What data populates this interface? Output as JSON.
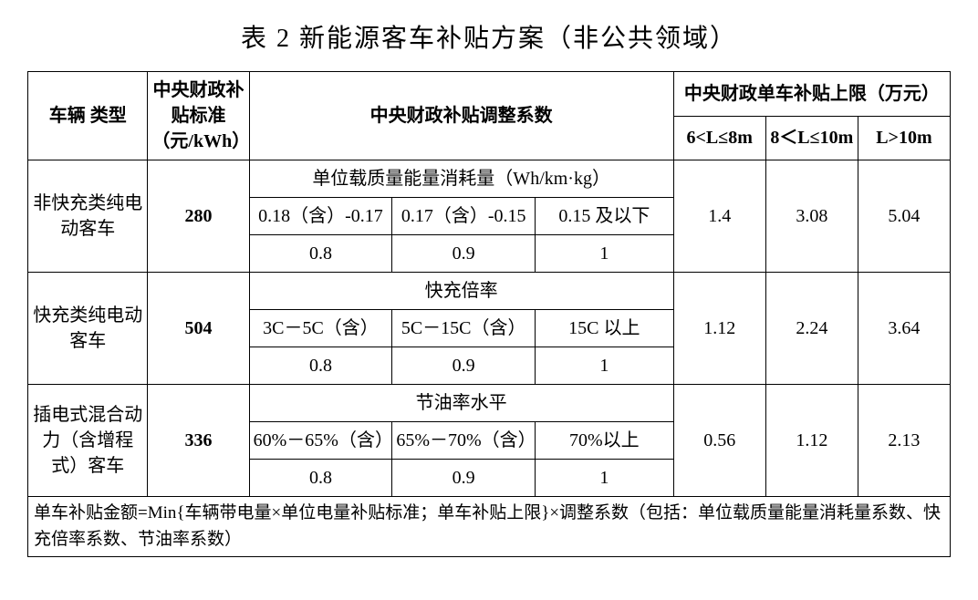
{
  "title": "表 2 新能源客车补贴方案（非公共领域）",
  "header": {
    "col1": "车辆\n类型",
    "col2": "中央财政补贴标准（元/kWh）",
    "col3": "中央财政补贴调整系数",
    "col4_group": "中央财政单车补贴上限（万元）",
    "sub_6_8": "6<L≤8m",
    "sub_8_10": "8＜L≤10m",
    "sub_gt10": "L>10m"
  },
  "rows": [
    {
      "type": "非快充类纯电动客车",
      "standard": "280",
      "sub_header": "单位载质量能量消耗量（Wh/km·kg）",
      "c1": "0.18（含）-0.17",
      "c2": "0.17（含）-0.15",
      "c3": "0.15 及以下",
      "f1": "0.8",
      "f2": "0.9",
      "f3": "1",
      "cap1": "1.4",
      "cap2": "3.08",
      "cap3": "5.04"
    },
    {
      "type": "快充类纯电动客车",
      "standard": "504",
      "sub_header": "快充倍率",
      "c1": "3C－5C（含）",
      "c2": "5C－15C（含）",
      "c3": "15C 以上",
      "f1": "0.8",
      "f2": "0.9",
      "f3": "1",
      "cap1": "1.12",
      "cap2": "2.24",
      "cap3": "3.64"
    },
    {
      "type": "插电式混合动力（含增程式）客车",
      "standard": "336",
      "sub_header": "节油率水平",
      "c1": "60%－65%（含）",
      "c2": "65%－70%（含）",
      "c3": "70%以上",
      "f1": "0.8",
      "f2": "0.9",
      "f3": "1",
      "cap1": "0.56",
      "cap2": "1.12",
      "cap3": "2.13"
    }
  ],
  "footer": "单车补贴金额=Min{车辆带电量×单位电量补贴标准；单车补贴上限}×调整系数（包括：单位载质量能量消耗量系数、快充倍率系数、节油率系数）"
}
